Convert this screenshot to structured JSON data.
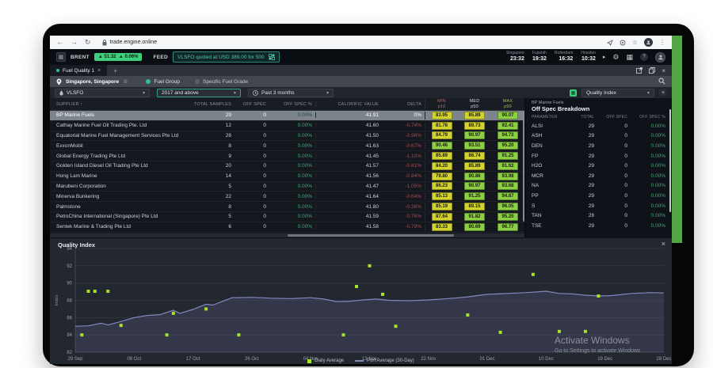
{
  "browser": {
    "url": "trade.engine.online"
  },
  "ticker": {
    "brent_label": "BRENT",
    "brent_value": "▲ 51.32",
    "brent_change": "▲ 0.06%",
    "feed_label": "FEED",
    "feed_text": "VLSFO quoted at USD 389.00 for 500"
  },
  "clocks": [
    {
      "city": "Singapore",
      "time": "23:32"
    },
    {
      "city": "Fujairah",
      "time": "19:32"
    },
    {
      "city": "Rotterdam",
      "time": "16:32"
    },
    {
      "city": "Houston",
      "time": "10:32"
    }
  ],
  "tabs": {
    "active_tab": "Fuel Quality 1"
  },
  "filters": {
    "location": "Singapore, Singapore",
    "fuel_group_label": "Fuel Group",
    "specific_fuel_grade_label": "Specific Fuel Grade",
    "fuel_grade": "VLSFO",
    "year_range": "2017 and above",
    "period": "Past 3 months",
    "index_select": "Quality Index"
  },
  "table": {
    "sort_indicator": "↑",
    "headers": [
      "SUPPLIER",
      "TOTAL SAMPLES",
      "OFF SPEC",
      "OFF SPEC %",
      "CALORIFIC VALUE",
      "DELTA"
    ],
    "band_headers": [
      [
        "MIN",
        "p10"
      ],
      [
        "MED",
        "p50"
      ],
      [
        "MAX",
        "p90"
      ]
    ],
    "badge_green_min": 90,
    "selected_index": 0,
    "rows": [
      [
        "BP Marine Fuels",
        "29",
        "0",
        "0.00%",
        "41.91",
        "0%",
        "83.95",
        "85.89",
        "90.07"
      ],
      [
        "Cathay Marine Fuel Oil Trading Pte. Ltd",
        "12",
        "0",
        "0.00%",
        "41.60",
        "-0.74%",
        "81.78",
        "89.73",
        "92.41"
      ],
      [
        "Equatorial Marine Fuel Management Services Pte Ltd",
        "28",
        "0",
        "0.00%",
        "41.50",
        "-0.96%",
        "84.79",
        "90.97",
        "94.73"
      ],
      [
        "ExxonMobil",
        "8",
        "0",
        "0.00%",
        "41.63",
        "-0.67%",
        "90.46",
        "93.51",
        "95.20"
      ],
      [
        "Global Energy Trading Pte Ltd",
        "9",
        "0",
        "0.00%",
        "41.45",
        "-1.10%",
        "85.89",
        "86.74",
        "91.25"
      ],
      [
        "Golden Island Diesel Oil Trading Pte Ltd",
        "20",
        "0",
        "0.00%",
        "41.57",
        "-0.81%",
        "84.20",
        "85.89",
        "91.62"
      ],
      [
        "Hong Lam Marine",
        "14",
        "0",
        "0.00%",
        "41.56",
        "-0.84%",
        "79.80",
        "90.86",
        "93.98"
      ],
      [
        "Marubeni Corporation",
        "5",
        "0",
        "0.00%",
        "41.47",
        "-1.05%",
        "86.23",
        "90.97",
        "93.68"
      ],
      [
        "Minerva Bunkering",
        "22",
        "0",
        "0.00%",
        "41.64",
        "-0.64%",
        "85.13",
        "91.25",
        "94.87"
      ],
      [
        "Palmstone",
        "8",
        "0",
        "0.00%",
        "41.80",
        "-0.26%",
        "85.19",
        "89.15",
        "96.05"
      ],
      [
        "PetroChina International (Singapore) Pte Ltd",
        "5",
        "0",
        "0.00%",
        "41.59",
        "-0.76%",
        "87.64",
        "91.82",
        "95.20"
      ],
      [
        "Sentek Marine & Trading Pte Ltd",
        "6",
        "0",
        "0.00%",
        "41.58",
        "-0.79%",
        "83.33",
        "90.69",
        "96.77"
      ]
    ]
  },
  "side_panel": {
    "supplier": "BP Marine Fuels",
    "title": "Off Spec Breakdown",
    "headers": [
      "PARAMETER",
      "TOTAL",
      "OFF SPEC",
      "OFF SPEC %"
    ],
    "rows": [
      [
        "ALSI",
        "29",
        "0",
        "0.00%"
      ],
      [
        "ASH",
        "29",
        "0",
        "0.00%"
      ],
      [
        "DEN",
        "29",
        "0",
        "0.00%"
      ],
      [
        "FP",
        "29",
        "0",
        "0.00%"
      ],
      [
        "H2O",
        "29",
        "0",
        "0.00%"
      ],
      [
        "MCR",
        "29",
        "0",
        "0.00%"
      ],
      [
        "NA",
        "29",
        "0",
        "0.00%"
      ],
      [
        "PP",
        "29",
        "0",
        "0.00%"
      ],
      [
        "S",
        "29",
        "0",
        "0.00%"
      ],
      [
        "TAN",
        "28",
        "0",
        "0.00%"
      ],
      [
        "TSE",
        "29",
        "0",
        "0.00%"
      ]
    ]
  },
  "chart_data": {
    "type": "line",
    "title": "Quality Index",
    "ylabel": "Index",
    "ylim": [
      82,
      94
    ],
    "yticks": [
      82,
      84,
      86,
      88,
      90,
      92,
      94
    ],
    "grid": true,
    "legend_position": "bottom",
    "x_domain_days": [
      0,
      90
    ],
    "x_ticks": [
      {
        "day": 0,
        "label": "29 Sep"
      },
      {
        "day": 9,
        "label": "08 Oct"
      },
      {
        "day": 18,
        "label": "17 Oct"
      },
      {
        "day": 27,
        "label": "26 Oct"
      },
      {
        "day": 36,
        "label": "04 Nov"
      },
      {
        "day": 45,
        "label": "13 Nov"
      },
      {
        "day": 54,
        "label": "22 Nov"
      },
      {
        "day": 63,
        "label": "01 Dec"
      },
      {
        "day": 72,
        "label": "10 Dec"
      },
      {
        "day": 81,
        "label": "19 Dec"
      },
      {
        "day": 90,
        "label": "28 Dec"
      }
    ],
    "series": [
      {
        "name": "Daily Average",
        "type": "scatter",
        "color": "#a6e32c",
        "points": [
          [
            1,
            84.0
          ],
          [
            2,
            89.05
          ],
          [
            3,
            89.05
          ],
          [
            5,
            89.05
          ],
          [
            7,
            85.1
          ],
          [
            14,
            84.0
          ],
          [
            15,
            86.5
          ],
          [
            20,
            87.0
          ],
          [
            25,
            84.0
          ],
          [
            41,
            84.0
          ],
          [
            43,
            89.6
          ],
          [
            45,
            92.0
          ],
          [
            47,
            88.7
          ],
          [
            49,
            85.0
          ],
          [
            60,
            86.3
          ],
          [
            65,
            84.3
          ],
          [
            70,
            91.0
          ],
          [
            74,
            84.4
          ],
          [
            78,
            84.4
          ],
          [
            80,
            88.5
          ]
        ]
      },
      {
        "name": "Port Average (30-Day)",
        "type": "area-line",
        "color": "#8287c0",
        "fill": "rgba(130,135,192,0.18)",
        "points": [
          [
            0,
            85.0
          ],
          [
            2,
            85.05
          ],
          [
            4,
            85.35
          ],
          [
            5,
            85.15
          ],
          [
            7,
            85.55
          ],
          [
            9,
            86.0
          ],
          [
            11,
            86.25
          ],
          [
            13,
            86.35
          ],
          [
            15,
            86.85
          ],
          [
            16,
            86.5
          ],
          [
            18,
            86.95
          ],
          [
            20,
            87.55
          ],
          [
            21,
            87.45
          ],
          [
            24,
            88.3
          ],
          [
            27,
            88.35
          ],
          [
            30,
            88.25
          ],
          [
            33,
            88.2
          ],
          [
            36,
            88.3
          ],
          [
            38,
            88.15
          ],
          [
            40,
            87.85
          ],
          [
            42,
            87.9
          ],
          [
            44,
            88.05
          ],
          [
            46,
            88.15
          ],
          [
            48,
            88.0
          ],
          [
            51,
            87.95
          ],
          [
            54,
            88.05
          ],
          [
            57,
            88.2
          ],
          [
            60,
            88.4
          ],
          [
            63,
            88.7
          ],
          [
            66,
            88.8
          ],
          [
            69,
            88.9
          ],
          [
            72,
            89.05
          ],
          [
            74,
            88.8
          ],
          [
            76,
            88.75
          ],
          [
            78,
            88.6
          ],
          [
            80,
            88.5
          ],
          [
            82,
            88.55
          ],
          [
            85,
            88.8
          ],
          [
            88,
            88.9
          ],
          [
            90,
            88.85
          ]
        ]
      }
    ]
  },
  "watermark": {
    "line1": "Activate Windows",
    "line2": "Go to Settings to activate Windows"
  }
}
